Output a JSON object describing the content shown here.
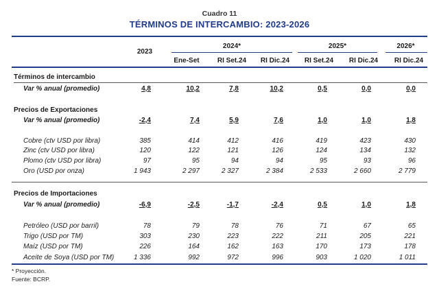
{
  "caption": "Cuadro 11",
  "title": "TÉRMINOS DE INTERCAMBIO: 2023-2026",
  "header": {
    "col2023": "2023",
    "group2024": "2024*",
    "group2025": "2025*",
    "group2026": "2026*",
    "sub": [
      "Ene-Set",
      "RI Set.24",
      "RI Dic.24",
      "RI Set.24",
      "RI Dic.24",
      "RI Dic.24"
    ]
  },
  "sections": {
    "terminos": {
      "title": "Términos de intercambio",
      "var_label": "Var % anual (promedio)",
      "var": [
        "4,8",
        "10,2",
        "7,8",
        "10,2",
        "0,5",
        "0,0",
        "0,0"
      ]
    },
    "exportaciones": {
      "title": "Precios de Exportaciones",
      "var_label": "Var % anual (promedio)",
      "var": [
        "-2,4",
        "7,4",
        "5,9",
        "7,6",
        "1,0",
        "1,0",
        "1,8"
      ],
      "rows": [
        {
          "label": "Cobre (ctv USD por libra)",
          "values": [
            "385",
            "414",
            "412",
            "416",
            "419",
            "423",
            "430"
          ]
        },
        {
          "label": "Zinc (ctv USD por libra)",
          "values": [
            "120",
            "122",
            "121",
            "126",
            "124",
            "134",
            "132"
          ]
        },
        {
          "label": "Plomo (ctv USD por libra)",
          "values": [
            "97",
            "95",
            "94",
            "94",
            "95",
            "93",
            "96"
          ]
        },
        {
          "label": "Oro (USD por onza)",
          "values": [
            "1 943",
            "2 297",
            "2 327",
            "2 384",
            "2 533",
            "2 660",
            "2 779"
          ]
        }
      ]
    },
    "importaciones": {
      "title": "Precios de Importaciones",
      "var_label": "Var % anual (promedio)",
      "var": [
        "-6,9",
        "-2,5",
        "-1,7",
        "-2,4",
        "0,5",
        "1,0",
        "1,8"
      ],
      "rows": [
        {
          "label": "Petróleo (USD por barril)",
          "values": [
            "78",
            "79",
            "78",
            "76",
            "71",
            "67",
            "65"
          ]
        },
        {
          "label": "Trigo (USD por TM)",
          "values": [
            "303",
            "230",
            "223",
            "222",
            "211",
            "205",
            "221"
          ]
        },
        {
          "label": "Maíz (USD por TM)",
          "values": [
            "226",
            "164",
            "162",
            "163",
            "170",
            "173",
            "178"
          ]
        },
        {
          "label": "Aceite de Soya (USD por TM)",
          "values": [
            "1 336",
            "992",
            "972",
            "996",
            "903",
            "1 020",
            "1 011"
          ]
        }
      ]
    }
  },
  "notes": {
    "proyeccion": "* Proyección.",
    "fuente": "Fuente: BCRP."
  }
}
